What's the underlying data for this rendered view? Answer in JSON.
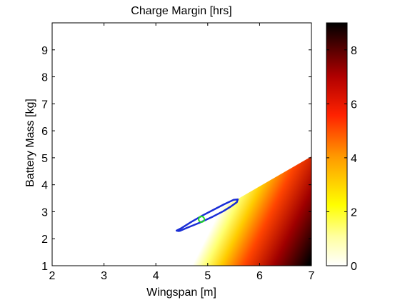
{
  "chart_data": {
    "type": "heatmap",
    "title": "Charge Margin [hrs]",
    "xlabel": "Wingspan [m]",
    "ylabel": "Battery Mass [kg]",
    "xlim": [
      2,
      7
    ],
    "ylim": [
      1,
      10
    ],
    "x_ticks": [
      "2",
      "3",
      "4",
      "5",
      "6",
      "7"
    ],
    "y_ticks": [
      "1",
      "2",
      "3",
      "4",
      "5",
      "6",
      "7",
      "8",
      "9"
    ],
    "colorbar": {
      "range": [
        0,
        9
      ],
      "ticks": [
        "0",
        "2",
        "4",
        "6",
        "8"
      ],
      "colormap": "hot (reversed): white at 0, yellow, orange, red, black at max"
    },
    "feasible_region": {
      "description": "nonzero margin only below the boundary line; white (no margin) above it",
      "boundary_line": [
        [
          3.35,
          1.0
        ],
        [
          7.0,
          5.05
        ]
      ]
    },
    "contour": {
      "color": "#1a2ed6",
      "points": [
        [
          4.45,
          2.28
        ],
        [
          4.62,
          2.42
        ],
        [
          4.85,
          2.6
        ],
        [
          5.1,
          2.82
        ],
        [
          5.3,
          3.02
        ],
        [
          5.45,
          3.2
        ],
        [
          5.56,
          3.35
        ],
        [
          5.58,
          3.46
        ],
        [
          5.5,
          3.44
        ],
        [
          5.32,
          3.28
        ],
        [
          5.12,
          3.08
        ],
        [
          4.9,
          2.86
        ],
        [
          4.68,
          2.62
        ],
        [
          4.5,
          2.4
        ],
        [
          4.4,
          2.3
        ],
        [
          4.45,
          2.28
        ]
      ]
    },
    "optimum_marker": {
      "x": 4.88,
      "y": 2.72,
      "color": "#22dd22"
    },
    "grid": false
  }
}
